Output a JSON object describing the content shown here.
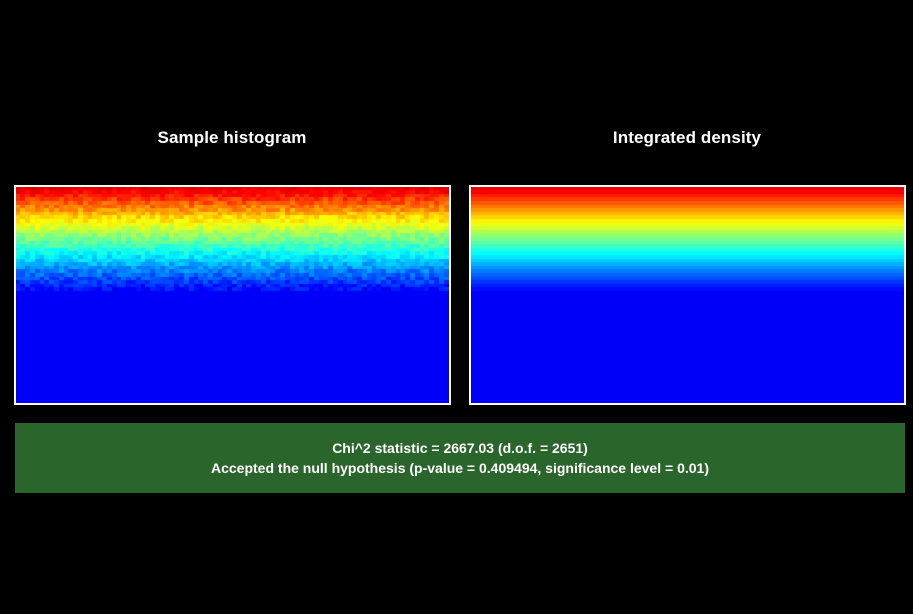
{
  "panels": {
    "left_title": "Sample histogram",
    "right_title": "Integrated density"
  },
  "result": {
    "line1": "Chi^2 statistic = 2667.03 (d.o.f. = 2651)",
    "line2": "Accepted the null hypothesis (p-value = 0.409494, significance level = 0.01)",
    "status_color": "#2a652b"
  },
  "colors": {
    "background": "#000000",
    "border": "#ffffff",
    "low": "#0000ff",
    "high": "#ff0000"
  }
}
